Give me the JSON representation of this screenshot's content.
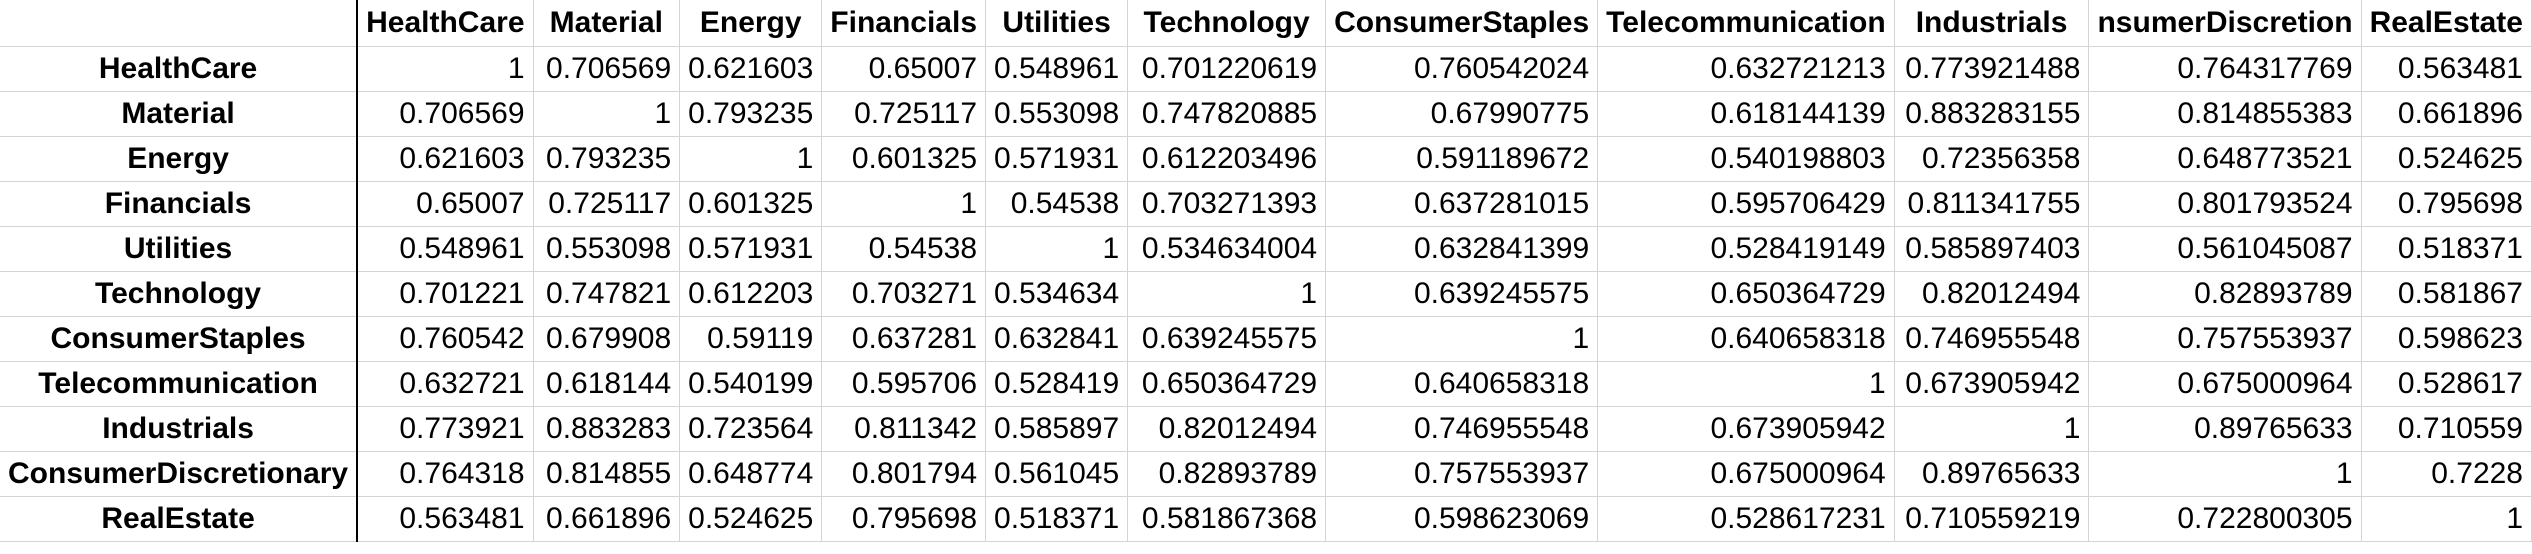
{
  "columns": [
    "HealthCare",
    "Material",
    "Energy",
    "Financials",
    "Utilities",
    "Technology",
    "ConsumerStaples",
    "Telecommunication",
    "Industrials",
    "ConsumerDiscretionary",
    "RealEstate"
  ],
  "column_headers_visible": [
    "HealthCare",
    "Material",
    "Energy",
    "Financials",
    "Utilities",
    "Technology",
    "ConsumerStaples",
    "Telecommunication",
    "Industrials",
    "nsumerDiscretion",
    "RealEstate"
  ],
  "rows": [
    {
      "label": "HealthCare",
      "values": [
        "1",
        "0.706569",
        "0.621603",
        "0.65007",
        "0.548961",
        "0.701220619",
        "0.760542024",
        "0.632721213",
        "0.773921488",
        "0.764317769",
        "0.563481"
      ]
    },
    {
      "label": "Material",
      "values": [
        "0.706569",
        "1",
        "0.793235",
        "0.725117",
        "0.553098",
        "0.747820885",
        "0.67990775",
        "0.618144139",
        "0.883283155",
        "0.814855383",
        "0.661896"
      ]
    },
    {
      "label": "Energy",
      "values": [
        "0.621603",
        "0.793235",
        "1",
        "0.601325",
        "0.571931",
        "0.612203496",
        "0.591189672",
        "0.540198803",
        "0.72356358",
        "0.648773521",
        "0.524625"
      ]
    },
    {
      "label": "Financials",
      "values": [
        "0.65007",
        "0.725117",
        "0.601325",
        "1",
        "0.54538",
        "0.703271393",
        "0.637281015",
        "0.595706429",
        "0.811341755",
        "0.801793524",
        "0.795698"
      ]
    },
    {
      "label": "Utilities",
      "values": [
        "0.548961",
        "0.553098",
        "0.571931",
        "0.54538",
        "1",
        "0.534634004",
        "0.632841399",
        "0.528419149",
        "0.585897403",
        "0.561045087",
        "0.518371"
      ]
    },
    {
      "label": "Technology",
      "values": [
        "0.701221",
        "0.747821",
        "0.612203",
        "0.703271",
        "0.534634",
        "1",
        "0.639245575",
        "0.650364729",
        "0.82012494",
        "0.82893789",
        "0.581867"
      ]
    },
    {
      "label": "ConsumerStaples",
      "values": [
        "0.760542",
        "0.679908",
        "0.59119",
        "0.637281",
        "0.632841",
        "0.639245575",
        "1",
        "0.640658318",
        "0.746955548",
        "0.757553937",
        "0.598623"
      ]
    },
    {
      "label": "Telecommunication",
      "values": [
        "0.632721",
        "0.618144",
        "0.540199",
        "0.595706",
        "0.528419",
        "0.650364729",
        "0.640658318",
        "1",
        "0.673905942",
        "0.675000964",
        "0.528617"
      ]
    },
    {
      "label": "Industrials",
      "values": [
        "0.773921",
        "0.883283",
        "0.723564",
        "0.811342",
        "0.585897",
        "0.82012494",
        "0.746955548",
        "0.673905942",
        "1",
        "0.89765633",
        "0.710559"
      ]
    },
    {
      "label": "ConsumerDiscretionary",
      "values": [
        "0.764318",
        "0.814855",
        "0.648774",
        "0.801794",
        "0.561045",
        "0.82893789",
        "0.757553937",
        "0.675000964",
        "0.89765633",
        "1",
        "0.7228"
      ]
    },
    {
      "label": "RealEstate",
      "values": [
        "0.563481",
        "0.661896",
        "0.524625",
        "0.795698",
        "0.518371",
        "0.581867368",
        "0.598623069",
        "0.528617231",
        "0.710559219",
        "0.722800305",
        "1"
      ]
    }
  ]
}
